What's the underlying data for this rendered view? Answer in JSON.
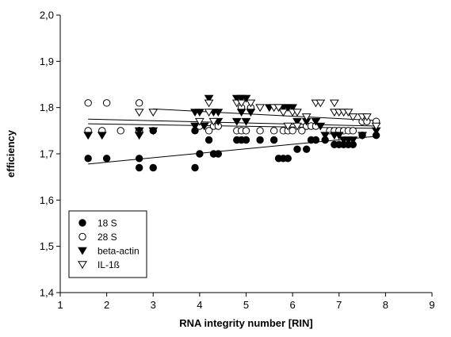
{
  "chart_data": {
    "type": "scatter",
    "xlabel": "RNA integrity number [RIN]",
    "ylabel": "efficiency",
    "xlim": [
      1,
      9
    ],
    "ylim": [
      1.4,
      2.0
    ],
    "x_ticks": [
      "1",
      "2",
      "3",
      "4",
      "5",
      "6",
      "7",
      "8",
      "9"
    ],
    "y_ticks": [
      "1,4",
      "1,5",
      "1,6",
      "1,7",
      "1,8",
      "1,9",
      "2,0"
    ],
    "grid": false,
    "legend_position": "bottom-left",
    "series": [
      {
        "name": "18 S",
        "marker": "filled-circle",
        "points": [
          [
            1.6,
            1.69
          ],
          [
            2.0,
            1.69
          ],
          [
            2.7,
            1.69
          ],
          [
            2.7,
            1.67
          ],
          [
            3.0,
            1.67
          ],
          [
            2.7,
            1.75
          ],
          [
            3.0,
            1.75
          ],
          [
            3.9,
            1.67
          ],
          [
            4.0,
            1.7
          ],
          [
            4.3,
            1.7
          ],
          [
            4.4,
            1.7
          ],
          [
            4.2,
            1.73
          ],
          [
            4.8,
            1.73
          ],
          [
            4.9,
            1.73
          ],
          [
            5.0,
            1.73
          ],
          [
            5.3,
            1.73
          ],
          [
            5.6,
            1.73
          ],
          [
            5.7,
            1.69
          ],
          [
            5.8,
            1.69
          ],
          [
            5.9,
            1.69
          ],
          [
            6.1,
            1.71
          ],
          [
            6.3,
            1.71
          ],
          [
            6.4,
            1.73
          ],
          [
            6.5,
            1.73
          ],
          [
            6.7,
            1.73
          ],
          [
            6.9,
            1.72
          ],
          [
            7.0,
            1.72
          ],
          [
            7.1,
            1.72
          ],
          [
            7.2,
            1.72
          ],
          [
            7.3,
            1.72
          ],
          [
            7.5,
            1.74
          ],
          [
            7.8,
            1.74
          ],
          [
            3.9,
            1.75
          ]
        ],
        "trend": [
          [
            1.6,
            1.678
          ],
          [
            7.8,
            1.738
          ]
        ]
      },
      {
        "name": "28 S",
        "marker": "open-circle",
        "points": [
          [
            1.6,
            1.81
          ],
          [
            2.0,
            1.81
          ],
          [
            2.7,
            1.81
          ],
          [
            1.6,
            1.75
          ],
          [
            1.9,
            1.75
          ],
          [
            2.3,
            1.75
          ],
          [
            2.7,
            1.75
          ],
          [
            4.0,
            1.76
          ],
          [
            4.3,
            1.76
          ],
          [
            4.4,
            1.76
          ],
          [
            4.2,
            1.75
          ],
          [
            4.8,
            1.75
          ],
          [
            4.9,
            1.75
          ],
          [
            5.0,
            1.75
          ],
          [
            5.3,
            1.75
          ],
          [
            5.6,
            1.75
          ],
          [
            5.8,
            1.75
          ],
          [
            5.9,
            1.75
          ],
          [
            6.0,
            1.75
          ],
          [
            6.2,
            1.75
          ],
          [
            6.3,
            1.76
          ],
          [
            6.4,
            1.76
          ],
          [
            6.5,
            1.76
          ],
          [
            6.8,
            1.75
          ],
          [
            6.9,
            1.75
          ],
          [
            7.0,
            1.75
          ],
          [
            7.1,
            1.75
          ],
          [
            7.2,
            1.75
          ],
          [
            7.3,
            1.75
          ],
          [
            7.5,
            1.77
          ],
          [
            7.6,
            1.77
          ],
          [
            7.8,
            1.77
          ],
          [
            4.9,
            1.8
          ],
          [
            5.1,
            1.8
          ]
        ],
        "trend": [
          [
            1.6,
            1.765
          ],
          [
            7.8,
            1.755
          ]
        ]
      },
      {
        "name": "beta-actin",
        "marker": "filled-triangle-down",
        "points": [
          [
            1.6,
            1.74
          ],
          [
            1.9,
            1.74
          ],
          [
            2.7,
            1.74
          ],
          [
            2.7,
            1.75
          ],
          [
            3.0,
            1.75
          ],
          [
            3.9,
            1.79
          ],
          [
            4.0,
            1.79
          ],
          [
            4.2,
            1.82
          ],
          [
            4.3,
            1.79
          ],
          [
            4.4,
            1.79
          ],
          [
            4.8,
            1.82
          ],
          [
            4.9,
            1.82
          ],
          [
            5.0,
            1.82
          ],
          [
            4.9,
            1.79
          ],
          [
            5.1,
            1.79
          ],
          [
            5.5,
            1.8
          ],
          [
            5.8,
            1.8
          ],
          [
            5.9,
            1.8
          ],
          [
            6.0,
            1.8
          ],
          [
            6.1,
            1.77
          ],
          [
            6.3,
            1.77
          ],
          [
            6.5,
            1.77
          ],
          [
            6.6,
            1.76
          ],
          [
            6.7,
            1.74
          ],
          [
            6.9,
            1.74
          ],
          [
            7.0,
            1.74
          ],
          [
            7.1,
            1.73
          ],
          [
            7.2,
            1.73
          ],
          [
            7.3,
            1.73
          ],
          [
            7.5,
            1.74
          ],
          [
            7.8,
            1.75
          ],
          [
            3.9,
            1.76
          ],
          [
            4.1,
            1.76
          ],
          [
            4.4,
            1.77
          ],
          [
            4.8,
            1.77
          ],
          [
            5.0,
            1.77
          ]
        ],
        "trend": [
          [
            1.6,
            1.775
          ],
          [
            7.8,
            1.76
          ]
        ]
      },
      {
        "name": "IL-1ß",
        "marker": "open-triangle-down",
        "points": [
          [
            2.7,
            1.79
          ],
          [
            3.0,
            1.79
          ],
          [
            4.0,
            1.77
          ],
          [
            4.3,
            1.77
          ],
          [
            4.2,
            1.81
          ],
          [
            4.8,
            1.81
          ],
          [
            4.9,
            1.81
          ],
          [
            5.1,
            1.81
          ],
          [
            5.3,
            1.8
          ],
          [
            5.6,
            1.8
          ],
          [
            5.7,
            1.8
          ],
          [
            5.8,
            1.79
          ],
          [
            6.0,
            1.79
          ],
          [
            6.1,
            1.79
          ],
          [
            6.3,
            1.78
          ],
          [
            6.5,
            1.81
          ],
          [
            6.6,
            1.81
          ],
          [
            6.9,
            1.81
          ],
          [
            6.9,
            1.79
          ],
          [
            7.0,
            1.79
          ],
          [
            7.1,
            1.79
          ],
          [
            7.2,
            1.79
          ],
          [
            7.3,
            1.78
          ],
          [
            7.5,
            1.78
          ],
          [
            7.6,
            1.78
          ],
          [
            7.8,
            1.76
          ],
          [
            5.9,
            1.76
          ],
          [
            6.1,
            1.76
          ],
          [
            4.2,
            1.79
          ]
        ],
        "trend": [
          [
            3.0,
            1.797
          ],
          [
            7.8,
            1.772
          ]
        ]
      }
    ]
  }
}
